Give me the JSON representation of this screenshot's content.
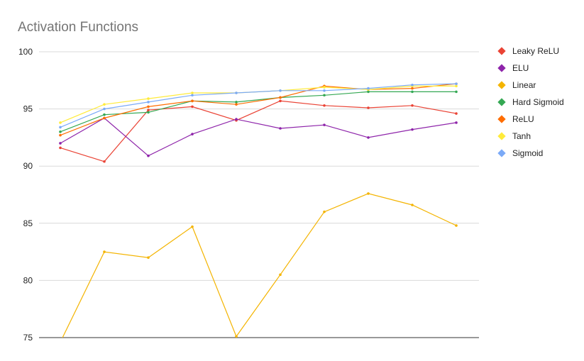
{
  "chart_data": {
    "type": "line",
    "title": "Activation Functions",
    "xlabel": "",
    "ylabel": "",
    "ylim": [
      75,
      100
    ],
    "yticks": [
      "100",
      "95",
      "90",
      "85",
      "80",
      "75"
    ],
    "grid": true,
    "legend_position": "right",
    "x": [
      1,
      2,
      3,
      4,
      5,
      6,
      7,
      8,
      9,
      10
    ],
    "series": [
      {
        "name": "Leaky ReLU",
        "color": "#ea4335",
        "values": [
          91.6,
          90.4,
          94.9,
          95.2,
          94.0,
          95.7,
          95.3,
          95.1,
          95.3,
          94.6
        ]
      },
      {
        "name": "ELU",
        "color": "#8e24aa",
        "values": [
          92.0,
          94.2,
          90.9,
          92.8,
          94.1,
          93.3,
          93.6,
          92.5,
          93.2,
          93.8
        ]
      },
      {
        "name": "Linear",
        "color": "#f4b400",
        "values": [
          74.6,
          82.5,
          82.0,
          84.7,
          75.1,
          80.5,
          86.0,
          87.6,
          86.6,
          84.8
        ]
      },
      {
        "name": "Hard Sigmoid",
        "color": "#34a853",
        "values": [
          93.0,
          94.5,
          94.7,
          95.7,
          95.6,
          96.0,
          96.2,
          96.5,
          96.5,
          96.5
        ]
      },
      {
        "name": "ReLU",
        "color": "#ff6d00",
        "values": [
          92.7,
          94.2,
          95.2,
          95.7,
          95.4,
          96.0,
          97.0,
          96.7,
          96.8,
          97.2
        ]
      },
      {
        "name": "Tanh",
        "color": "#ffeb3b",
        "values": [
          93.8,
          95.4,
          95.9,
          96.4,
          96.4,
          96.6,
          96.9,
          96.7,
          97.0,
          97.0
        ]
      },
      {
        "name": "Sigmoid",
        "color": "#7baaf7",
        "values": [
          93.4,
          95.0,
          95.6,
          96.2,
          96.4,
          96.6,
          96.6,
          96.8,
          97.1,
          97.2
        ]
      }
    ]
  }
}
